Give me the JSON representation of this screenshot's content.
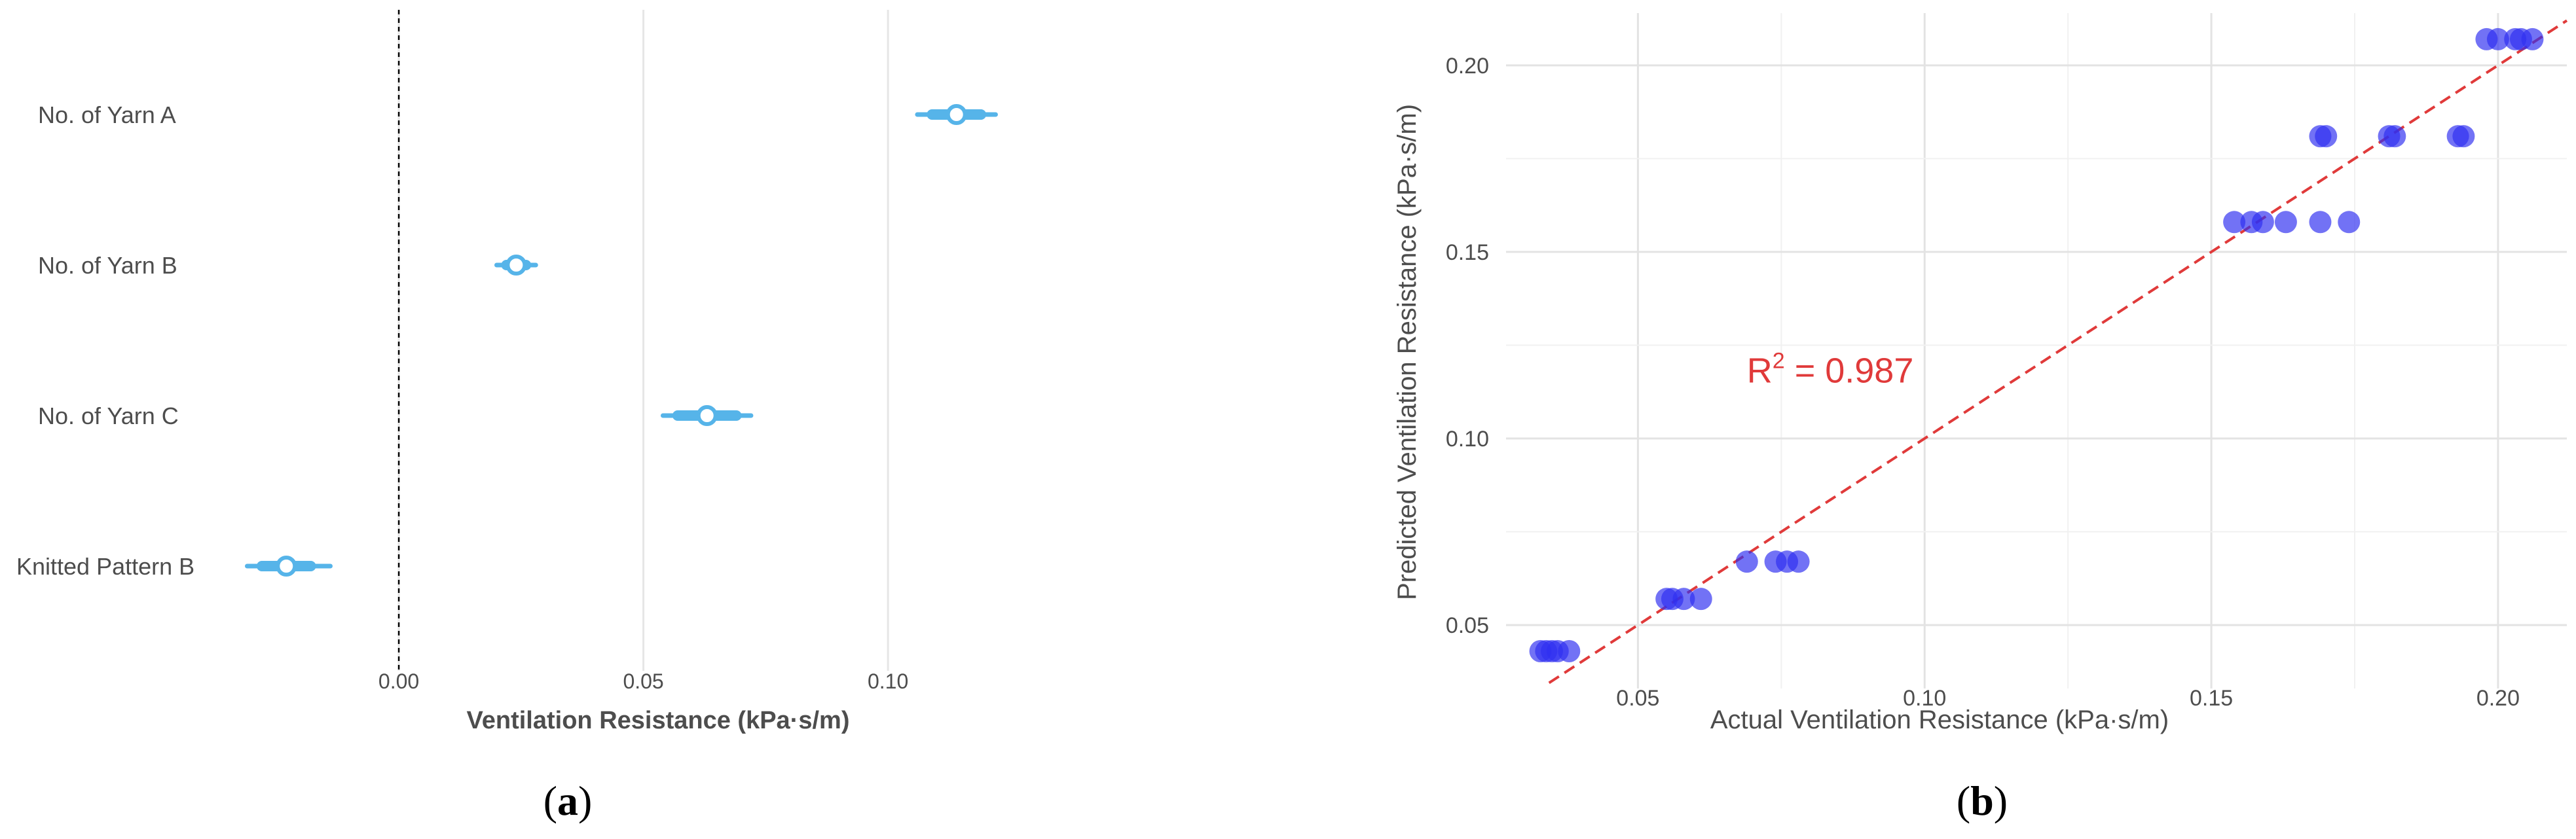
{
  "chart_data": [
    {
      "type": "scatter",
      "panel_label": {
        "open": "(",
        "letter": "a",
        "close": ")"
      },
      "xlabel": "Ventilation Resistance (kPa·s/m)",
      "xlim": [
        -0.032,
        0.138
      ],
      "xticks": [
        0.0,
        0.05,
        0.1
      ],
      "xtick_labels": [
        "0.00",
        "0.05",
        "0.10"
      ],
      "reference_line": 0,
      "color": "#56b4e9",
      "categories": [
        "No. of Yarn A",
        "No. of Yarn B",
        "No. of Yarn C",
        "Knitted Pattern B"
      ],
      "estimates": [
        {
          "label": "No. of Yarn A",
          "value": 0.114,
          "ci_low": 0.106,
          "ci_high": 0.122,
          "inner_low": 0.109,
          "inner_high": 0.119
        },
        {
          "label": "No. of Yarn B",
          "value": 0.024,
          "ci_low": 0.02,
          "ci_high": 0.028,
          "inner_low": 0.022,
          "inner_high": 0.026
        },
        {
          "label": "No. of Yarn C",
          "value": 0.063,
          "ci_low": 0.054,
          "ci_high": 0.072,
          "inner_low": 0.057,
          "inner_high": 0.069
        },
        {
          "label": "Knitted Pattern B",
          "value": -0.023,
          "ci_low": -0.031,
          "ci_high": -0.014,
          "inner_low": -0.028,
          "inner_high": -0.018
        }
      ]
    },
    {
      "type": "scatter",
      "panel_label": {
        "open": "(",
        "letter": "b",
        "close": ")"
      },
      "xlabel": "Actual Ventilation Resistance (kPa·s/m)",
      "ylabel": "Predicted Ventilation Resistance (kPa·s/m)",
      "xlim": [
        0.027,
        0.212
      ],
      "ylim": [
        0.033,
        0.214
      ],
      "xticks": [
        0.05,
        0.1,
        0.15,
        0.2
      ],
      "xtick_labels": [
        "0.05",
        "0.10",
        "0.15",
        "0.20"
      ],
      "yticks": [
        0.05,
        0.1,
        0.15,
        0.2
      ],
      "ytick_labels": [
        "0.05",
        "0.10",
        "0.15",
        "0.20"
      ],
      "annotation": {
        "base": "R",
        "sup": "2",
        "rest": " = 0.987",
        "x": 0.069,
        "y": 0.115
      },
      "fit_line": {
        "from": [
          0.0345,
          0.0345
        ],
        "to": [
          0.212,
          0.212
        ]
      },
      "point_color": "#2f2ff0",
      "line_color": "#e03a3a",
      "points": [
        {
          "x": 0.033,
          "y": 0.043
        },
        {
          "x": 0.034,
          "y": 0.043
        },
        {
          "x": 0.035,
          "y": 0.043
        },
        {
          "x": 0.036,
          "y": 0.043
        },
        {
          "x": 0.038,
          "y": 0.043
        },
        {
          "x": 0.055,
          "y": 0.057
        },
        {
          "x": 0.056,
          "y": 0.057
        },
        {
          "x": 0.058,
          "y": 0.057
        },
        {
          "x": 0.061,
          "y": 0.057
        },
        {
          "x": 0.069,
          "y": 0.067
        },
        {
          "x": 0.074,
          "y": 0.067
        },
        {
          "x": 0.076,
          "y": 0.067
        },
        {
          "x": 0.078,
          "y": 0.067
        },
        {
          "x": 0.154,
          "y": 0.158
        },
        {
          "x": 0.157,
          "y": 0.158
        },
        {
          "x": 0.159,
          "y": 0.158
        },
        {
          "x": 0.163,
          "y": 0.158
        },
        {
          "x": 0.169,
          "y": 0.158
        },
        {
          "x": 0.174,
          "y": 0.158
        },
        {
          "x": 0.169,
          "y": 0.181
        },
        {
          "x": 0.17,
          "y": 0.181
        },
        {
          "x": 0.181,
          "y": 0.181
        },
        {
          "x": 0.182,
          "y": 0.181
        },
        {
          "x": 0.193,
          "y": 0.181
        },
        {
          "x": 0.194,
          "y": 0.181
        },
        {
          "x": 0.198,
          "y": 0.207
        },
        {
          "x": 0.2,
          "y": 0.207
        },
        {
          "x": 0.203,
          "y": 0.207
        },
        {
          "x": 0.204,
          "y": 0.207
        },
        {
          "x": 0.206,
          "y": 0.207
        }
      ]
    }
  ]
}
